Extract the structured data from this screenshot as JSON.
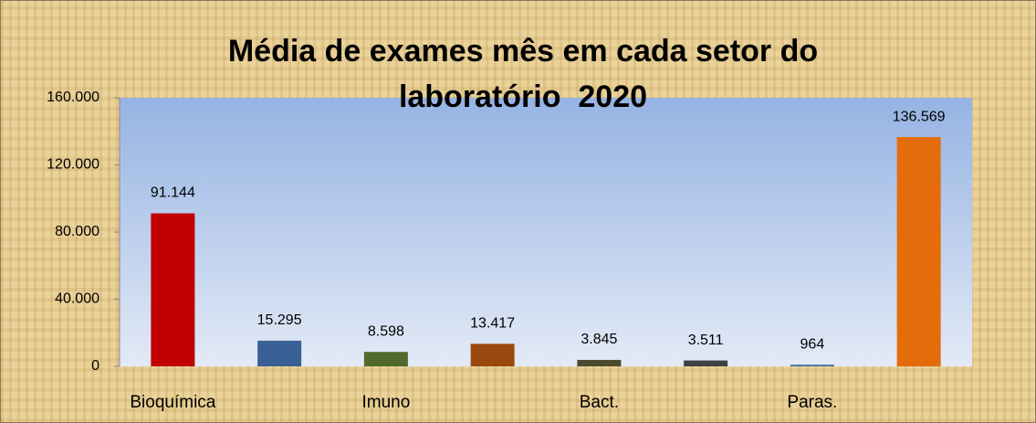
{
  "chart_data": {
    "type": "bar",
    "title": "Média de exames mês em cada setor do laboratório  2020",
    "categories": [
      "Bioquímica",
      null,
      "Imuno",
      null,
      "Bact.",
      null,
      "Paras.",
      null
    ],
    "values": [
      91144,
      15295,
      8598,
      13417,
      3845,
      3511,
      964,
      136569
    ],
    "value_labels": [
      "91.144",
      "15.295",
      "8.598",
      "13.417",
      "3.845",
      "3.511",
      "964",
      "136.569"
    ],
    "colors": [
      "#c00000",
      "#3a6196",
      "#4f6a2c",
      "#9a4a0e",
      "#4b4a2e",
      "#3f4046",
      "#3b6fa0",
      "#e46c0a"
    ],
    "ylim": [
      0,
      160000
    ],
    "yticks": [
      0,
      {
        "value": 40000,
        "label": "40.000"
      },
      {
        "value": 80000,
        "label": "80.000"
      },
      {
        "value": 120000,
        "label": "120.000"
      },
      {
        "value": 160000,
        "label": "160.000"
      }
    ]
  }
}
